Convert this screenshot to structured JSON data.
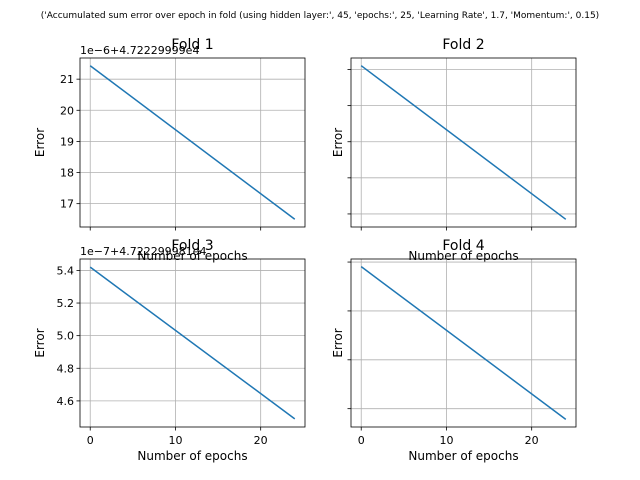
{
  "figure": {
    "suptitle": "('Accumulated sum error over epoch in fold (using hidden layer:', 45, 'epochs:', 25, 'Learning Rate', 1.7, 'Momentum:', 0.15)"
  },
  "colors": {
    "line": "#1f77b4",
    "grid": "#b0b0b0",
    "axes": "#000000"
  },
  "chart_data": [
    {
      "type": "line",
      "title": "Fold 1",
      "xlabel": "Number of epochs",
      "ylabel": "Error",
      "offset_text": "1e−6+4.72229999e4",
      "x": [
        0,
        24
      ],
      "y": [
        21.43,
        16.5
      ],
      "xlim": [
        -1.2,
        25.2
      ],
      "ylim": [
        16.25,
        21.68
      ],
      "xticks": [
        0,
        10,
        20
      ],
      "xtick_labels": [
        "",
        "",
        ""
      ],
      "yticks": [
        17,
        18,
        19,
        20,
        21
      ],
      "ytick_labels": [
        "17",
        "18",
        "19",
        "20",
        "21"
      ],
      "grid": true
    },
    {
      "type": "line",
      "title": "Fold 2",
      "xlabel": "Number of epochs",
      "ylabel": "Error",
      "offset_text": "",
      "x": [
        0,
        24
      ],
      "y": [
        1.0,
        0.0
      ],
      "xlim": [
        -1.2,
        25.2
      ],
      "ylim": [
        -0.05,
        1.05
      ],
      "xticks": [
        0,
        10,
        20
      ],
      "xtick_labels": [
        "",
        "",
        ""
      ],
      "yticks": [
        0.035,
        0.27,
        0.505,
        0.74,
        0.975
      ],
      "ytick_labels": [
        "",
        "",
        "",
        "",
        ""
      ],
      "grid": true
    },
    {
      "type": "line",
      "title": "Fold 3",
      "xlabel": "Number of epochs",
      "ylabel": "Error",
      "offset_text": "1e−7+4.722299981e4",
      "x": [
        0,
        24
      ],
      "y": [
        5.42,
        4.49
      ],
      "xlim": [
        -1.2,
        25.2
      ],
      "ylim": [
        4.44,
        5.47
      ],
      "xticks": [
        0,
        10,
        20
      ],
      "xtick_labels": [
        "0",
        "10",
        "20"
      ],
      "yticks": [
        4.6,
        4.8,
        5.0,
        5.2,
        5.4
      ],
      "ytick_labels": [
        "4.6",
        "4.8",
        "5.0",
        "5.2",
        "5.4"
      ],
      "grid": true
    },
    {
      "type": "line",
      "title": "Fold 4",
      "xlabel": "Number of epochs",
      "ylabel": "Error",
      "offset_text": "",
      "x": [
        0,
        24
      ],
      "y": [
        1.0,
        0.0
      ],
      "xlim": [
        -1.2,
        25.2
      ],
      "ylim": [
        -0.05,
        1.05
      ],
      "xticks": [
        0,
        10,
        20
      ],
      "xtick_labels": [
        "0",
        "10",
        "20"
      ],
      "yticks": [
        0.07,
        0.39,
        0.71,
        1.03
      ],
      "ytick_labels": [
        "",
        "",
        "",
        ""
      ],
      "grid": true
    }
  ]
}
